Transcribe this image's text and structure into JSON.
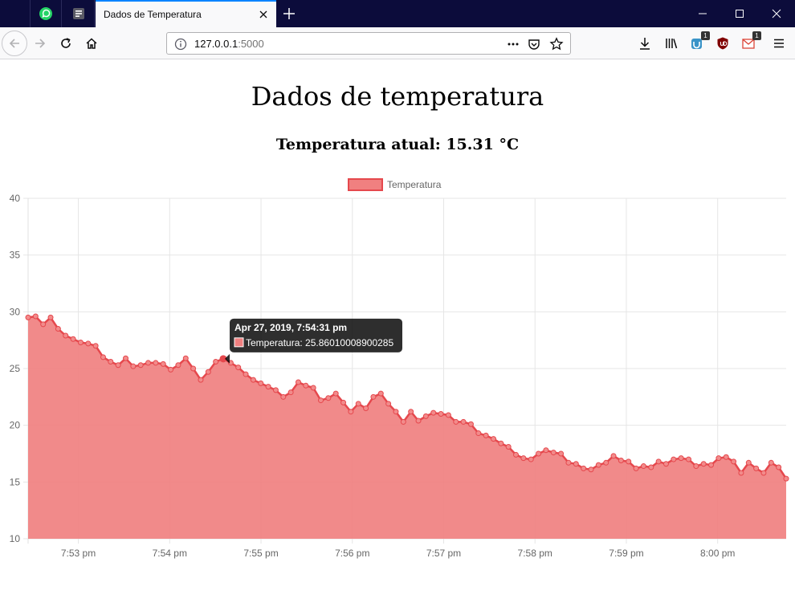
{
  "browser": {
    "tab_title": "Dados de Temperatura",
    "url_host": "127.0.0.1",
    "url_port": ":5000",
    "badges": {
      "containers": "1",
      "mail": "1"
    },
    "icons": [
      "whatsapp-icon",
      "app-icon",
      "close-icon",
      "plus-icon",
      "minimize-icon",
      "maximize-icon",
      "window-close-icon",
      "back-icon",
      "forward-icon",
      "reload-icon",
      "home-icon",
      "info-icon",
      "more-icon",
      "pocket-icon",
      "star-icon",
      "download-icon",
      "library-icon",
      "containers-icon",
      "ublock-icon",
      "mail-icon",
      "menu-icon"
    ]
  },
  "page": {
    "title": "Dados de temperatura",
    "subtitle": "Temperatura atual: 15.31 °C"
  },
  "chart_data": {
    "type": "area",
    "legend": "Temperatura",
    "legend_position": "top",
    "series_color": "#f08080",
    "line_color": "#e5484d",
    "grid": true,
    "ylim": [
      10,
      40
    ],
    "yticks": [
      "10",
      "15",
      "20",
      "25",
      "30",
      "35",
      "40"
    ],
    "xlim": [
      "7:52:27 pm",
      "8:00:45 pm"
    ],
    "xticks": [
      {
        "label": "7:53 pm",
        "t": 33
      },
      {
        "label": "7:54 pm",
        "t": 93
      },
      {
        "label": "7:55 pm",
        "t": 153
      },
      {
        "label": "7:56 pm",
        "t": 213
      },
      {
        "label": "7:57 pm",
        "t": 273
      },
      {
        "label": "7:58 pm",
        "t": 333
      },
      {
        "label": "7:59 pm",
        "t": 393
      },
      {
        "label": "8:00 pm",
        "t": 453
      }
    ],
    "t_range": [
      0,
      498
    ],
    "values": [
      29.5,
      29.6,
      28.9,
      29.5,
      28.5,
      27.9,
      27.6,
      27.3,
      27.2,
      27.0,
      26.0,
      25.6,
      25.3,
      25.9,
      25.2,
      25.3,
      25.5,
      25.5,
      25.4,
      24.9,
      25.3,
      25.9,
      25.0,
      24.0,
      24.7,
      25.6,
      25.86,
      25.5,
      25.1,
      24.5,
      24.0,
      23.7,
      23.4,
      23.1,
      22.5,
      22.9,
      23.8,
      23.5,
      23.3,
      22.2,
      22.4,
      22.8,
      22.0,
      21.2,
      21.9,
      21.5,
      22.5,
      22.8,
      21.9,
      21.2,
      20.3,
      21.2,
      20.4,
      20.8,
      21.1,
      21.0,
      20.9,
      20.3,
      20.3,
      20.1,
      19.3,
      19.1,
      18.8,
      18.4,
      18.1,
      17.4,
      17.1,
      17.0,
      17.5,
      17.8,
      17.6,
      17.5,
      16.7,
      16.6,
      16.2,
      16.1,
      16.5,
      16.7,
      17.3,
      16.9,
      16.8,
      16.2,
      16.4,
      16.3,
      16.8,
      16.6,
      17.0,
      17.1,
      17.0,
      16.4,
      16.6,
      16.5,
      17.1,
      17.2,
      16.8,
      15.8,
      16.7,
      16.2,
      15.8,
      16.7,
      16.3,
      15.3
    ],
    "tooltip": {
      "title": "Apr 27, 2019, 7:54:31 pm",
      "label": "Temperatura: 25.86010008900285",
      "index": 26
    }
  }
}
